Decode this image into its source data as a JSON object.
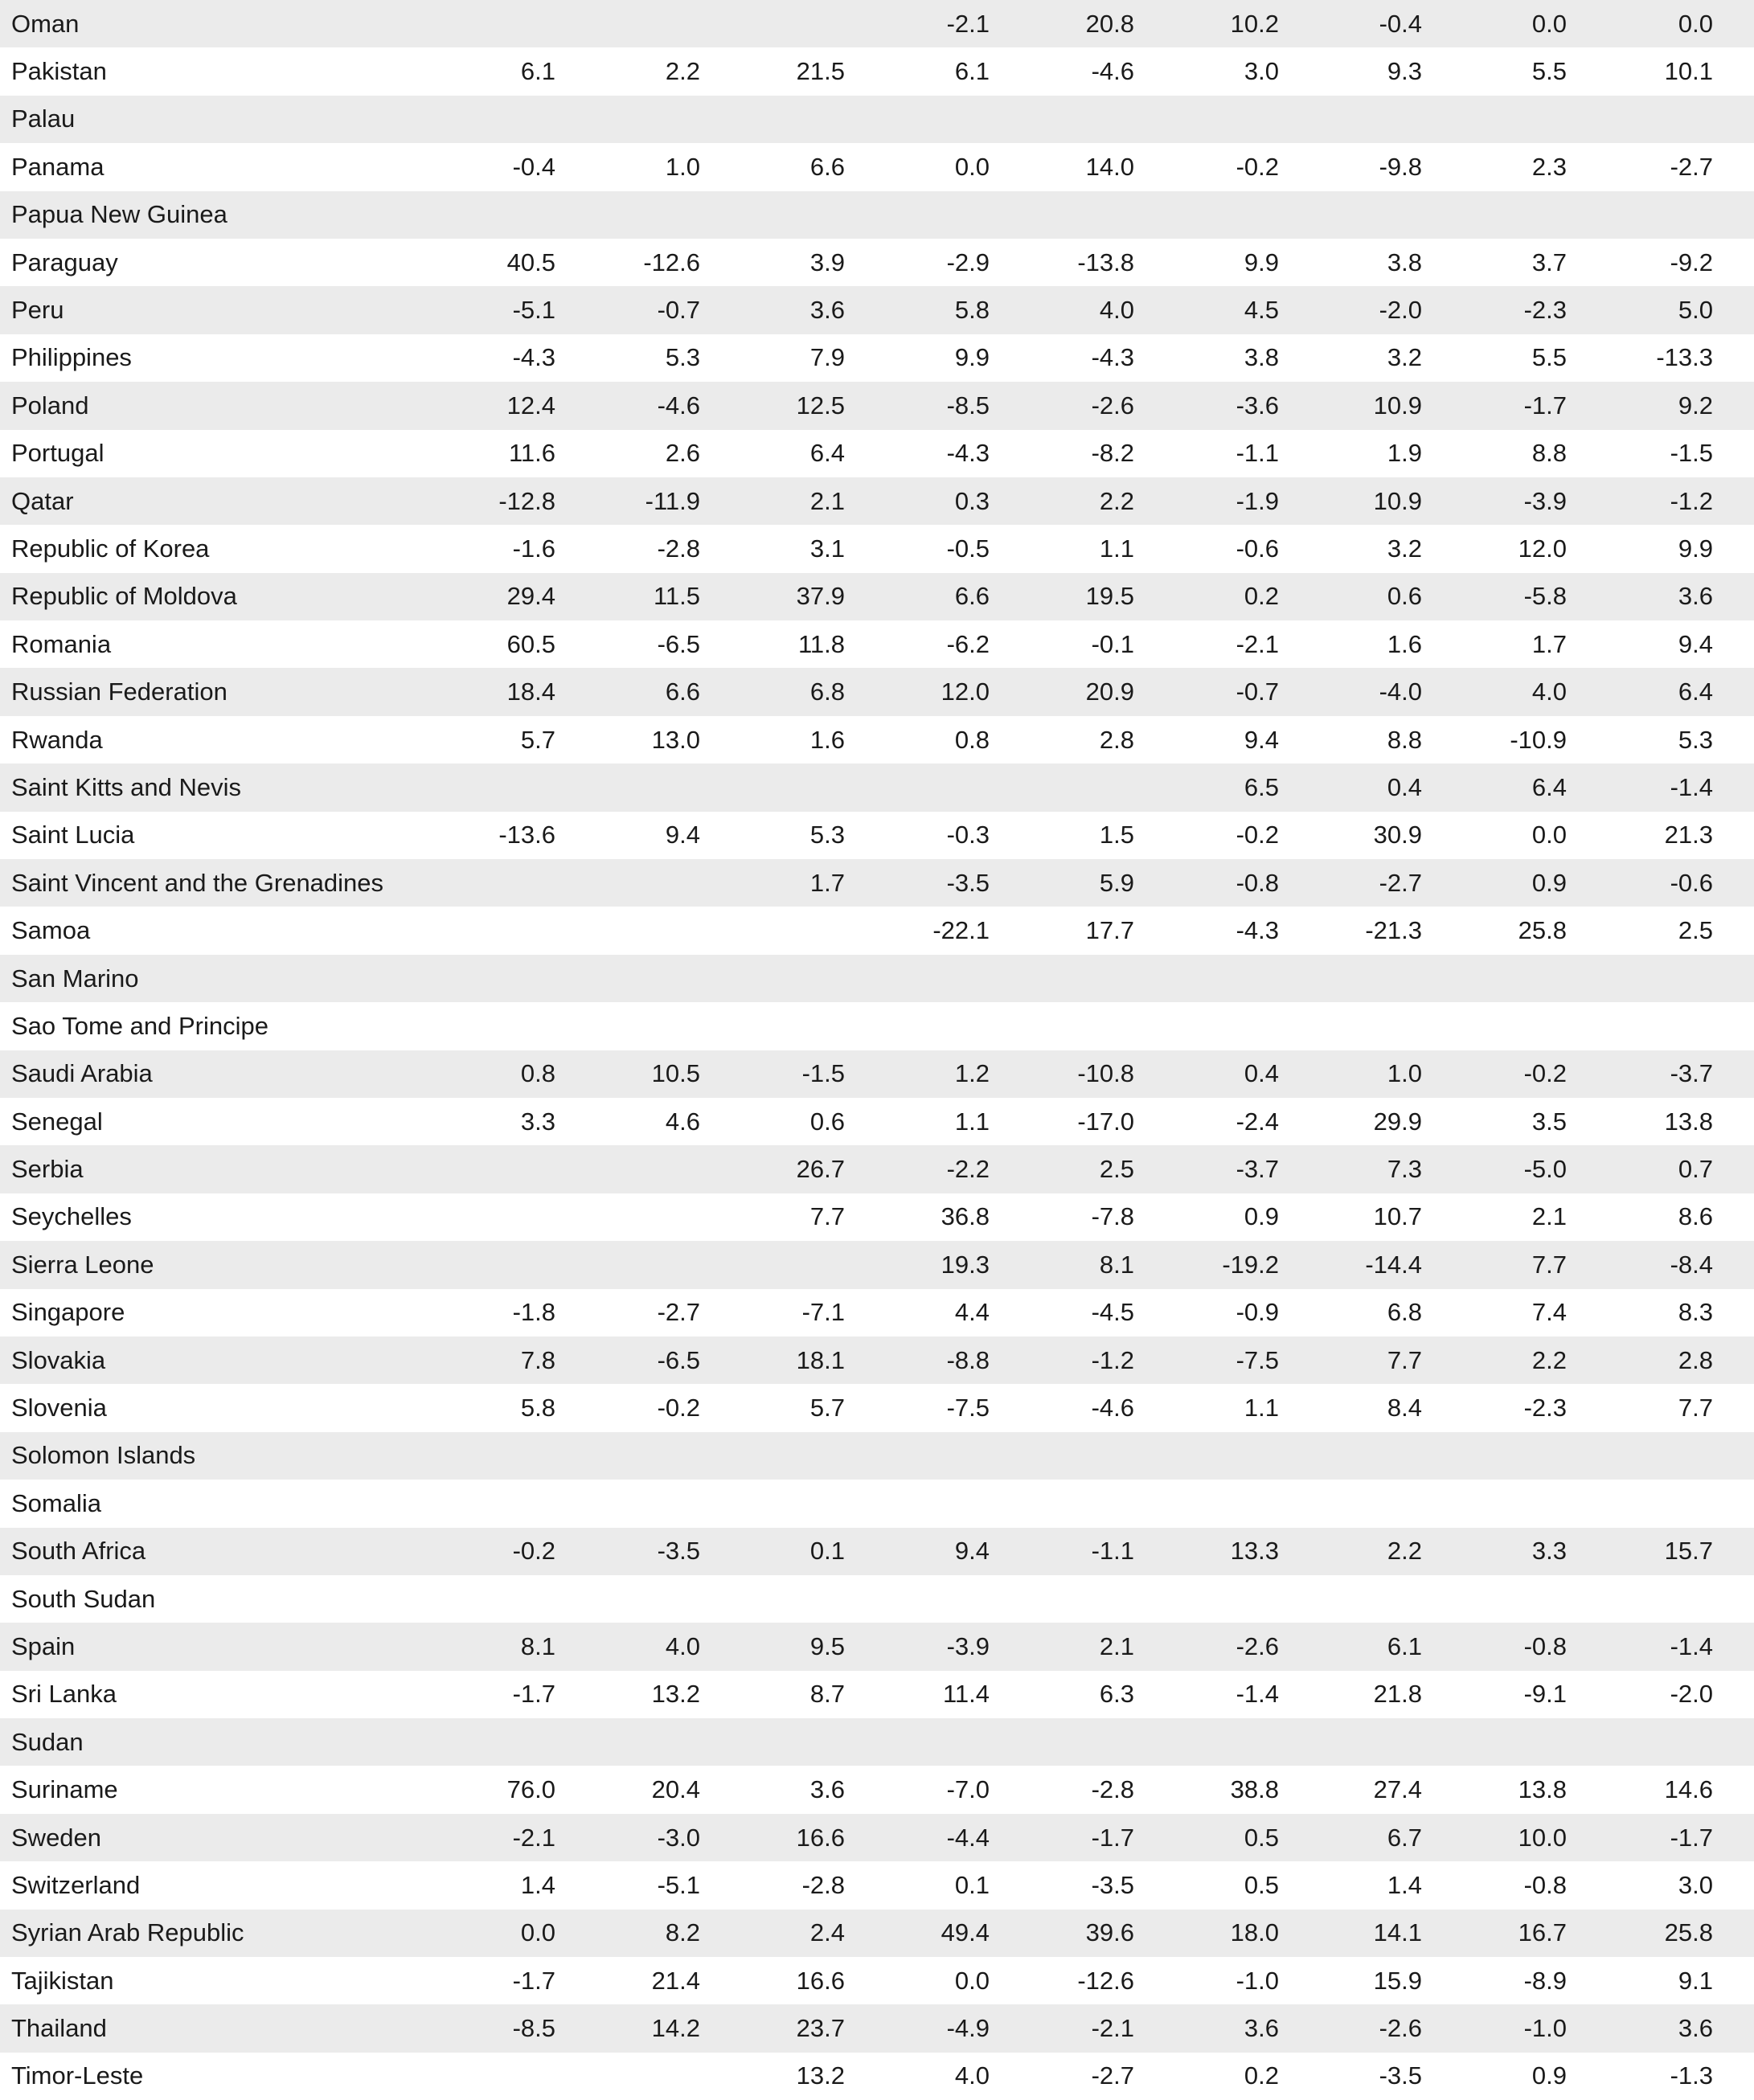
{
  "rows": [
    {
      "country": "Oman",
      "values": [
        "",
        "",
        "",
        "-2.1",
        "20.8",
        "10.2",
        "-0.4",
        "0.0",
        "0.0"
      ]
    },
    {
      "country": "Pakistan",
      "values": [
        "6.1",
        "2.2",
        "21.5",
        "6.1",
        "-4.6",
        "3.0",
        "9.3",
        "5.5",
        "10.1"
      ]
    },
    {
      "country": "Palau",
      "values": [
        "",
        "",
        "",
        "",
        "",
        "",
        "",
        "",
        ""
      ]
    },
    {
      "country": "Panama",
      "values": [
        "-0.4",
        "1.0",
        "6.6",
        "0.0",
        "14.0",
        "-0.2",
        "-9.8",
        "2.3",
        "-2.7"
      ]
    },
    {
      "country": "Papua New Guinea",
      "values": [
        "",
        "",
        "",
        "",
        "",
        "",
        "",
        "",
        ""
      ]
    },
    {
      "country": "Paraguay",
      "values": [
        "40.5",
        "-12.6",
        "3.9",
        "-2.9",
        "-13.8",
        "9.9",
        "3.8",
        "3.7",
        "-9.2"
      ]
    },
    {
      "country": "Peru",
      "values": [
        "-5.1",
        "-0.7",
        "3.6",
        "5.8",
        "4.0",
        "4.5",
        "-2.0",
        "-2.3",
        "5.0"
      ]
    },
    {
      "country": "Philippines",
      "values": [
        "-4.3",
        "5.3",
        "7.9",
        "9.9",
        "-4.3",
        "3.8",
        "3.2",
        "5.5",
        "-13.3"
      ]
    },
    {
      "country": "Poland",
      "values": [
        "12.4",
        "-4.6",
        "12.5",
        "-8.5",
        "-2.6",
        "-3.6",
        "10.9",
        "-1.7",
        "9.2"
      ]
    },
    {
      "country": "Portugal",
      "values": [
        "11.6",
        "2.6",
        "6.4",
        "-4.3",
        "-8.2",
        "-1.1",
        "1.9",
        "8.8",
        "-1.5"
      ]
    },
    {
      "country": "Qatar",
      "values": [
        "-12.8",
        "-11.9",
        "2.1",
        "0.3",
        "2.2",
        "-1.9",
        "10.9",
        "-3.9",
        "-1.2"
      ]
    },
    {
      "country": "Republic of Korea",
      "values": [
        "-1.6",
        "-2.8",
        "3.1",
        "-0.5",
        "1.1",
        "-0.6",
        "3.2",
        "12.0",
        "9.9"
      ]
    },
    {
      "country": "Republic of Moldova",
      "values": [
        "29.4",
        "11.5",
        "37.9",
        "6.6",
        "19.5",
        "0.2",
        "0.6",
        "-5.8",
        "3.6"
      ]
    },
    {
      "country": "Romania",
      "values": [
        "60.5",
        "-6.5",
        "11.8",
        "-6.2",
        "-0.1",
        "-2.1",
        "1.6",
        "1.7",
        "9.4"
      ]
    },
    {
      "country": "Russian Federation",
      "values": [
        "18.4",
        "6.6",
        "6.8",
        "12.0",
        "20.9",
        "-0.7",
        "-4.0",
        "4.0",
        "6.4"
      ]
    },
    {
      "country": "Rwanda",
      "values": [
        "5.7",
        "13.0",
        "1.6",
        "0.8",
        "2.8",
        "9.4",
        "8.8",
        "-10.9",
        "5.3"
      ]
    },
    {
      "country": "Saint Kitts and Nevis",
      "values": [
        "",
        "",
        "",
        "",
        "",
        "6.5",
        "0.4",
        "6.4",
        "-1.4"
      ]
    },
    {
      "country": "Saint Lucia",
      "values": [
        "-13.6",
        "9.4",
        "5.3",
        "-0.3",
        "1.5",
        "-0.2",
        "30.9",
        "0.0",
        "21.3"
      ]
    },
    {
      "country": "Saint Vincent and the Grenadines",
      "values": [
        "",
        "",
        "1.7",
        "-3.5",
        "5.9",
        "-0.8",
        "-2.7",
        "0.9",
        "-0.6"
      ]
    },
    {
      "country": "Samoa",
      "values": [
        "",
        "",
        "",
        "-22.1",
        "17.7",
        "-4.3",
        "-21.3",
        "25.8",
        "2.5"
      ]
    },
    {
      "country": "San Marino",
      "values": [
        "",
        "",
        "",
        "",
        "",
        "",
        "",
        "",
        ""
      ]
    },
    {
      "country": "Sao Tome and Principe",
      "values": [
        "",
        "",
        "",
        "",
        "",
        "",
        "",
        "",
        ""
      ]
    },
    {
      "country": "Saudi Arabia",
      "values": [
        "0.8",
        "10.5",
        "-1.5",
        "1.2",
        "-10.8",
        "0.4",
        "1.0",
        "-0.2",
        "-3.7"
      ]
    },
    {
      "country": "Senegal",
      "values": [
        "3.3",
        "4.6",
        "0.6",
        "1.1",
        "-17.0",
        "-2.4",
        "29.9",
        "3.5",
        "13.8"
      ]
    },
    {
      "country": "Serbia",
      "values": [
        "",
        "",
        "26.7",
        "-2.2",
        "2.5",
        "-3.7",
        "7.3",
        "-5.0",
        "0.7"
      ]
    },
    {
      "country": "Seychelles",
      "values": [
        "",
        "",
        "7.7",
        "36.8",
        "-7.8",
        "0.9",
        "10.7",
        "2.1",
        "8.6"
      ]
    },
    {
      "country": "Sierra Leone",
      "values": [
        "",
        "",
        "",
        "19.3",
        "8.1",
        "-19.2",
        "-14.4",
        "7.7",
        "-8.4"
      ]
    },
    {
      "country": "Singapore",
      "values": [
        "-1.8",
        "-2.7",
        "-7.1",
        "4.4",
        "-4.5",
        "-0.9",
        "6.8",
        "7.4",
        "8.3"
      ]
    },
    {
      "country": "Slovakia",
      "values": [
        "7.8",
        "-6.5",
        "18.1",
        "-8.8",
        "-1.2",
        "-7.5",
        "7.7",
        "2.2",
        "2.8"
      ]
    },
    {
      "country": "Slovenia",
      "values": [
        "5.8",
        "-0.2",
        "5.7",
        "-7.5",
        "-4.6",
        "1.1",
        "8.4",
        "-2.3",
        "7.7"
      ]
    },
    {
      "country": "Solomon Islands",
      "values": [
        "",
        "",
        "",
        "",
        "",
        "",
        "",
        "",
        ""
      ]
    },
    {
      "country": "Somalia",
      "values": [
        "",
        "",
        "",
        "",
        "",
        "",
        "",
        "",
        ""
      ]
    },
    {
      "country": "South Africa",
      "values": [
        "-0.2",
        "-3.5",
        "0.1",
        "9.4",
        "-1.1",
        "13.3",
        "2.2",
        "3.3",
        "15.7"
      ]
    },
    {
      "country": "South Sudan",
      "values": [
        "",
        "",
        "",
        "",
        "",
        "",
        "",
        "",
        ""
      ]
    },
    {
      "country": "Spain",
      "values": [
        "8.1",
        "4.0",
        "9.5",
        "-3.9",
        "2.1",
        "-2.6",
        "6.1",
        "-0.8",
        "-1.4"
      ]
    },
    {
      "country": "Sri Lanka",
      "values": [
        "-1.7",
        "13.2",
        "8.7",
        "11.4",
        "6.3",
        "-1.4",
        "21.8",
        "-9.1",
        "-2.0"
      ]
    },
    {
      "country": "Sudan",
      "values": [
        "",
        "",
        "",
        "",
        "",
        "",
        "",
        "",
        ""
      ]
    },
    {
      "country": "Suriname",
      "values": [
        "76.0",
        "20.4",
        "3.6",
        "-7.0",
        "-2.8",
        "38.8",
        "27.4",
        "13.8",
        "14.6"
      ]
    },
    {
      "country": "Sweden",
      "values": [
        "-2.1",
        "-3.0",
        "16.6",
        "-4.4",
        "-1.7",
        "0.5",
        "6.7",
        "10.0",
        "-1.7"
      ]
    },
    {
      "country": "Switzerland",
      "values": [
        "1.4",
        "-5.1",
        "-2.8",
        "0.1",
        "-3.5",
        "0.5",
        "1.4",
        "-0.8",
        "3.0"
      ]
    },
    {
      "country": "Syrian Arab Republic",
      "values": [
        "0.0",
        "8.2",
        "2.4",
        "49.4",
        "39.6",
        "18.0",
        "14.1",
        "16.7",
        "25.8"
      ]
    },
    {
      "country": "Tajikistan",
      "values": [
        "-1.7",
        "21.4",
        "16.6",
        "0.0",
        "-12.6",
        "-1.0",
        "15.9",
        "-8.9",
        "9.1"
      ]
    },
    {
      "country": "Thailand",
      "values": [
        "-8.5",
        "14.2",
        "23.7",
        "-4.9",
        "-2.1",
        "3.6",
        "-2.6",
        "-1.0",
        "3.6"
      ]
    },
    {
      "country": "Timor-Leste",
      "values": [
        "",
        "",
        "13.2",
        "4.0",
        "-2.7",
        "0.2",
        "-3.5",
        "0.9",
        "-1.3"
      ]
    }
  ]
}
